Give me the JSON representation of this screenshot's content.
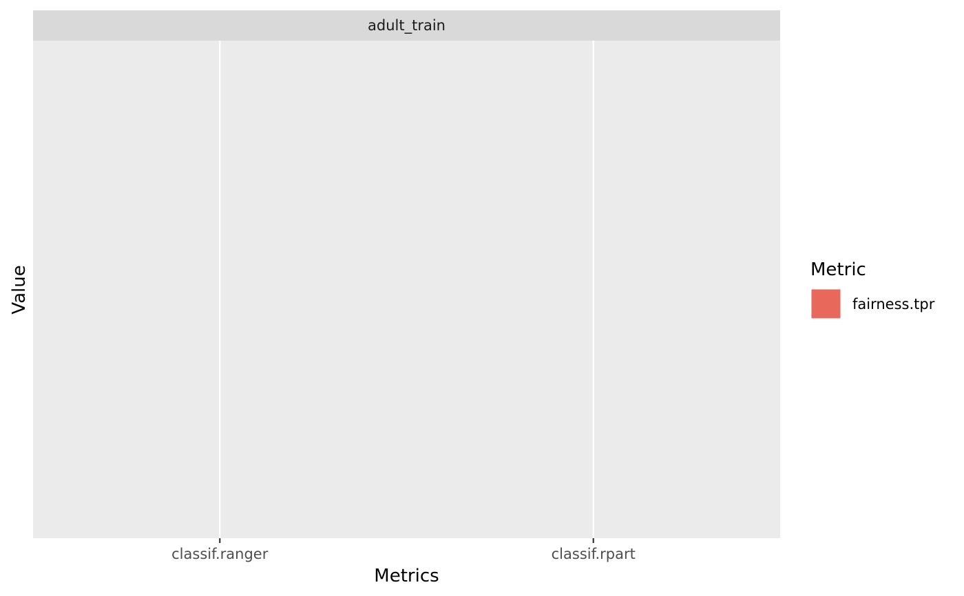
{
  "chart_data": {
    "type": "bar",
    "facet_label": "adult_train",
    "categories": [
      "classif.ranger",
      "classif.rpart"
    ],
    "series": [
      {
        "name": "fairness.tpr",
        "values": [
          null,
          null
        ]
      }
    ],
    "xlabel": "Metrics",
    "ylabel": "Value",
    "legend": {
      "title": "Metric",
      "position": "right",
      "entries": [
        "fairness.tpr"
      ]
    },
    "grid": true
  },
  "colors": {
    "panel_bg": "#ebebeb",
    "strip_bg": "#d9d9d9",
    "grid": "#ffffff",
    "series": [
      "#e8695c"
    ]
  }
}
